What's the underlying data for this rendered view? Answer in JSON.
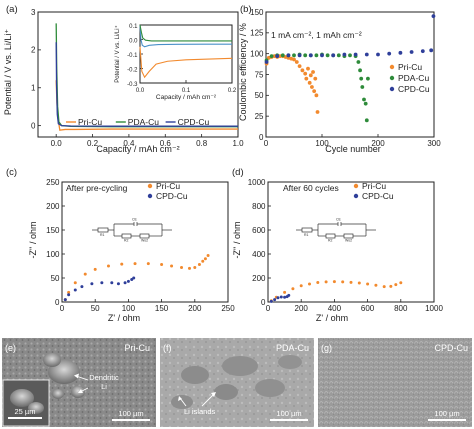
{
  "colors": {
    "pri": "#f28a2e",
    "pda": "#2e8b3a",
    "cpd": "#2f3f9a",
    "inset_pda": "#4a90c8",
    "inset_cpd": "#2e8b3a"
  },
  "chart_data": [
    {
      "id": "a",
      "type": "line",
      "panel_label": "(a)",
      "xlabel": "Capacity / mAh cm⁻²",
      "ylabel": "Potential / V vs. Li/Li⁺",
      "xlim": [
        -0.1,
        1.0
      ],
      "ylim": [
        -0.3,
        3.0
      ],
      "xticks": [
        "0.0",
        "0.2",
        "0.4",
        "0.6",
        "0.8",
        "1.0"
      ],
      "yticks": [
        "0",
        "1",
        "2",
        "3"
      ],
      "legend": [
        "Pri-Cu",
        "PDA-Cu",
        "CPD-Cu"
      ],
      "legend_position": "bottom-center",
      "series": [
        {
          "name": "Pri-Cu",
          "x": [
            0.0,
            0.004,
            0.01,
            0.02,
            0.05,
            0.1,
            0.3,
            0.6,
            1.0
          ],
          "y": [
            1.2,
            0.6,
            0.2,
            -0.12,
            -0.1,
            -0.1,
            -0.09,
            -0.09,
            -0.09
          ]
        },
        {
          "name": "PDA-Cu",
          "x": [
            0.0,
            0.003,
            0.008,
            0.015,
            0.03,
            0.08,
            0.3,
            0.6,
            1.0
          ],
          "y": [
            2.7,
            1.5,
            0.5,
            0.1,
            0.0,
            -0.02,
            -0.03,
            -0.03,
            -0.03
          ]
        },
        {
          "name": "CPD-Cu",
          "x": [
            0.0,
            0.002,
            0.006,
            0.012,
            0.03,
            0.08,
            0.3,
            0.6,
            1.0
          ],
          "y": [
            2.2,
            1.1,
            0.3,
            0.05,
            0.0,
            -0.01,
            -0.015,
            -0.015,
            -0.015
          ]
        }
      ],
      "inset": {
        "xlabel": "Capacity / mAh cm⁻²",
        "ylabel": "Potential / V vs. Li/Li⁺",
        "xlim": [
          0.0,
          0.2
        ],
        "ylim": [
          -0.3,
          0.1
        ],
        "xticks": [
          "0.0",
          "0.1",
          "0.2"
        ],
        "yticks": [
          "-0.3",
          "-0.2",
          "-0.1",
          "0.0",
          "0.1"
        ],
        "series": [
          {
            "name": "Pri-Cu",
            "x": [
              0.0,
              0.004,
              0.01,
              0.02,
              0.035,
              0.06,
              0.1,
              0.15,
              0.2
            ],
            "y": [
              -0.05,
              -0.22,
              -0.26,
              -0.22,
              -0.17,
              -0.15,
              -0.14,
              -0.135,
              -0.13
            ]
          },
          {
            "name": "PDA-Cu",
            "x": [
              0.0,
              0.002,
              0.005,
              0.01,
              0.02,
              0.04,
              0.08,
              0.14,
              0.2
            ],
            "y": [
              0.1,
              0.0,
              -0.04,
              -0.05,
              -0.04,
              -0.035,
              -0.033,
              -0.032,
              -0.032
            ]
          },
          {
            "name": "CPD-Cu",
            "x": [
              0.0,
              0.003,
              0.006,
              0.012,
              0.025,
              0.05,
              0.1,
              0.15,
              0.2
            ],
            "y": [
              0.1,
              0.05,
              0.01,
              -0.005,
              -0.01,
              -0.01,
              -0.01,
              -0.01,
              -0.01
            ]
          }
        ]
      }
    },
    {
      "id": "b",
      "type": "scatter",
      "panel_label": "(b)",
      "xlabel": "Cycle number",
      "ylabel": "Coulombic efficiency / %",
      "xlim": [
        0,
        300
      ],
      "ylim": [
        0,
        150
      ],
      "xticks": [
        "0",
        "100",
        "200",
        "300"
      ],
      "yticks": [
        "0",
        "25",
        "50",
        "75",
        "100",
        "125",
        "150"
      ],
      "annotation": "1 mA cm⁻², 1 mAh cm⁻²",
      "legend": [
        "Pri-Cu",
        "PDA-Cu",
        "CPD-Cu"
      ],
      "legend_position": "right-center",
      "series": [
        {
          "name": "Pri-Cu",
          "x": [
            1,
            5,
            10,
            15,
            20,
            25,
            30,
            35,
            40,
            45,
            50,
            55,
            60,
            65,
            70,
            72,
            75,
            78,
            80,
            82,
            84,
            86,
            88,
            90,
            92
          ],
          "y": [
            88,
            95,
            96,
            97,
            96,
            97,
            97,
            96,
            95,
            94,
            93,
            90,
            85,
            80,
            76,
            70,
            82,
            65,
            74,
            60,
            78,
            55,
            70,
            50,
            30
          ]
        },
        {
          "name": "PDA-Cu",
          "x": [
            1,
            10,
            20,
            30,
            40,
            50,
            60,
            70,
            80,
            90,
            100,
            110,
            120,
            130,
            140,
            150,
            160,
            165,
            168,
            170,
            172,
            175,
            178,
            180,
            182
          ],
          "y": [
            92,
            97,
            98,
            98,
            98,
            98,
            99,
            98,
            98,
            98,
            99,
            98,
            98,
            98,
            97,
            98,
            97,
            90,
            80,
            70,
            60,
            45,
            40,
            20,
            70
          ]
        },
        {
          "name": "CPD-Cu",
          "x": [
            1,
            20,
            40,
            60,
            80,
            100,
            120,
            140,
            160,
            180,
            200,
            220,
            240,
            260,
            280,
            295,
            299
          ],
          "y": [
            90,
            97,
            98,
            98,
            98,
            98,
            98,
            99,
            99,
            99,
            99,
            100,
            101,
            102,
            103,
            104,
            145
          ]
        }
      ]
    },
    {
      "id": "c",
      "type": "scatter",
      "panel_label": "(c)",
      "xlabel": "Z' / ohm",
      "ylabel": "-Z'' / ohm",
      "xlim": [
        0,
        250
      ],
      "ylim": [
        0,
        250
      ],
      "xticks": [
        "0",
        "50",
        "100",
        "150",
        "200",
        "250"
      ],
      "yticks": [
        "0",
        "50",
        "100",
        "150",
        "200",
        "250"
      ],
      "annotation": "After pre-cycling",
      "legend": [
        "Pri-Cu",
        "CPD-Cu"
      ],
      "legend_position": "top-right",
      "circuit_labels": [
        "R1",
        "R2",
        "CE",
        "Wo2"
      ],
      "series": [
        {
          "name": "Pri-Cu",
          "x": [
            5,
            10,
            20,
            35,
            50,
            70,
            90,
            110,
            130,
            150,
            165,
            180,
            192,
            200,
            207,
            212,
            216,
            220
          ],
          "y": [
            5,
            20,
            40,
            58,
            68,
            75,
            79,
            80,
            80,
            78,
            75,
            72,
            70,
            72,
            78,
            85,
            90,
            97
          ]
        },
        {
          "name": "CPD-Cu",
          "x": [
            5,
            10,
            20,
            30,
            45,
            60,
            75,
            85,
            95,
            100,
            105,
            108
          ],
          "y": [
            5,
            15,
            25,
            32,
            38,
            40,
            40,
            38,
            40,
            43,
            47,
            50
          ]
        }
      ]
    },
    {
      "id": "d",
      "type": "scatter",
      "panel_label": "(d)",
      "xlabel": "Z' / ohm",
      "ylabel": "-Z'' / ohm",
      "xlim": [
        0,
        1000
      ],
      "ylim": [
        0,
        1000
      ],
      "xticks": [
        "0",
        "200",
        "400",
        "600",
        "800",
        "1000"
      ],
      "yticks": [
        "0",
        "200",
        "400",
        "600",
        "800",
        "1000"
      ],
      "annotation": "After 60 cycles",
      "legend": [
        "Pri-Cu",
        "CPD-Cu"
      ],
      "legend_position": "top-right",
      "circuit_labels": [
        "R1",
        "R2",
        "CE",
        "Wo2"
      ],
      "series": [
        {
          "name": "Pri-Cu",
          "x": [
            20,
            50,
            100,
            150,
            200,
            250,
            300,
            350,
            400,
            450,
            500,
            550,
            600,
            650,
            700,
            740,
            770,
            800
          ],
          "y": [
            10,
            40,
            80,
            110,
            135,
            150,
            162,
            168,
            170,
            168,
            164,
            158,
            150,
            140,
            128,
            130,
            145,
            160
          ]
        },
        {
          "name": "CPD-Cu",
          "x": [
            20,
            40,
            60,
            80,
            100,
            115,
            125
          ],
          "y": [
            5,
            20,
            35,
            42,
            40,
            45,
            55
          ]
        }
      ]
    }
  ],
  "sem_panels": [
    {
      "panel_label": "(e)",
      "sample": "Pri-Cu",
      "annotation": "Dendritic\nLi",
      "scale_main": "100 µm",
      "scale_inset": "25 µm"
    },
    {
      "panel_label": "(f)",
      "sample": "PDA-Cu",
      "annotation": "Li islands",
      "scale_main": "100 µm"
    },
    {
      "panel_label": "(g)",
      "sample": "CPD-Cu",
      "scale_main": "100 µm"
    }
  ]
}
